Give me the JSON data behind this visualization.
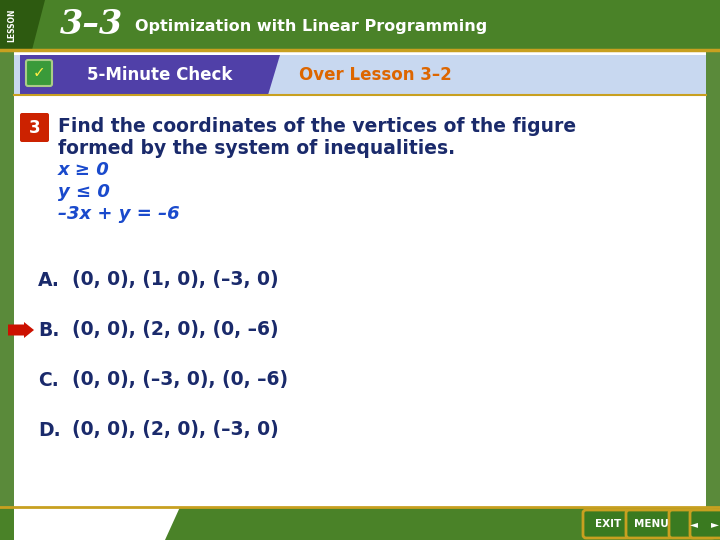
{
  "title_lesson": "3–3",
  "title_topic": "Optimization with Linear Programming",
  "header_label": "5-Minute Check",
  "header_sub": "Over Lesson 3–2",
  "question_number": "3",
  "question_text_line1": "Find the coordinates of the vertices of the figure",
  "question_text_line2": "formed by the system of inequalities.",
  "ineq1": "x ≥ 0",
  "ineq2": "y ≤ 0",
  "ineq3": "–3x + y = –6",
  "answer_A_label": "A.",
  "answer_A_text": "(0, 0), (1, 0), (–3, 0)",
  "answer_B_label": "B.",
  "answer_B_text": "(0, 0), (2, 0), (0, –6)",
  "answer_C_label": "C.",
  "answer_C_text": "(0, 0), (–3, 0), (0, –6)",
  "answer_D_label": "D.",
  "answer_D_text": "(0, 0), (2, 0), (–3, 0)",
  "correct_answer": "B",
  "bg_outer": "#5a8a3a",
  "bg_white": "#ffffff",
  "top_bar_green": "#4a8228",
  "top_bar_dark": "#2d5a10",
  "top_bar_gold": "#c8a020",
  "header_purple": "#5040a8",
  "header_light": "#c8d8f0",
  "answer_color": "#1a2a6b",
  "question_color": "#1a2a6b",
  "ineq_color": "#1a4acc",
  "correct_arrow_color": "#cc1100",
  "badge_color": "#cc2200",
  "over_lesson_color": "#dd6600",
  "bottom_green": "#4a8228"
}
